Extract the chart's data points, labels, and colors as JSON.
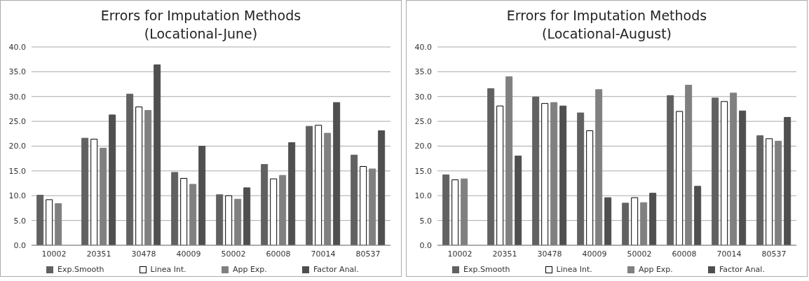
{
  "chart_data": [
    {
      "type": "bar",
      "title": "Errors for Imputation Methods",
      "subtitle": "(Locational-June)",
      "categories": [
        "10002",
        "20351",
        "30478",
        "40009",
        "50002",
        "60008",
        "70014",
        "80537"
      ],
      "series": [
        {
          "name": "Exp.Smooth",
          "color": "#616161",
          "values": [
            10.1,
            21.6,
            30.5,
            14.7,
            10.2,
            16.3,
            24.0,
            18.2
          ]
        },
        {
          "name": "Linea Int.",
          "color": "#ffffff",
          "values": [
            9.2,
            21.4,
            27.9,
            13.5,
            10.0,
            13.4,
            24.2,
            15.9
          ]
        },
        {
          "name": "App Exp.",
          "color": "#808080",
          "values": [
            8.4,
            19.6,
            27.2,
            12.3,
            9.3,
            14.1,
            22.6,
            15.4
          ]
        },
        {
          "name": "Factor Anal.",
          "color": "#4f4f4f",
          "values": [
            null,
            26.3,
            36.4,
            20.0,
            11.6,
            20.7,
            28.8,
            23.1
          ]
        }
      ],
      "ylim": [
        0,
        40
      ],
      "yticks": [
        {
          "value": 0,
          "label": "0.0"
        },
        {
          "value": 5,
          "label": "5.0"
        },
        {
          "value": 10,
          "label": "10.0"
        },
        {
          "value": 15,
          "label": "15.0"
        },
        {
          "value": 20,
          "label": "20.0"
        },
        {
          "value": 25,
          "label": "25.0"
        },
        {
          "value": 30,
          "label": "30.0"
        },
        {
          "value": 35,
          "label": "35.0"
        },
        {
          "value": 40,
          "label": "40.0"
        }
      ],
      "grid": "y",
      "legend": "bottom"
    },
    {
      "type": "bar",
      "title": "Errors for Imputation Methods",
      "subtitle": "(Locational-August)",
      "categories": [
        "10002",
        "20351",
        "30478",
        "40009",
        "50002",
        "60008",
        "70014",
        "80537"
      ],
      "series": [
        {
          "name": "Exp.Smooth",
          "color": "#616161",
          "values": [
            14.2,
            31.6,
            29.9,
            26.7,
            8.5,
            30.2,
            29.7,
            22.1
          ]
        },
        {
          "name": "Linea Int.",
          "color": "#ffffff",
          "values": [
            13.2,
            28.1,
            28.6,
            23.1,
            9.6,
            27.0,
            29.0,
            21.5
          ]
        },
        {
          "name": "App Exp.",
          "color": "#808080",
          "values": [
            13.4,
            34.0,
            28.8,
            31.4,
            8.6,
            32.3,
            30.7,
            21.0
          ]
        },
        {
          "name": "Factor Anal.",
          "color": "#4f4f4f",
          "values": [
            null,
            18.0,
            28.1,
            9.6,
            10.5,
            11.9,
            27.1,
            25.8
          ]
        }
      ],
      "ylim": [
        0,
        40
      ],
      "yticks": [
        {
          "value": 0,
          "label": "0.0"
        },
        {
          "value": 5,
          "label": "5.0"
        },
        {
          "value": 10,
          "label": "10.0"
        },
        {
          "value": 15,
          "label": "15.0"
        },
        {
          "value": 20,
          "label": "20.0"
        },
        {
          "value": 25,
          "label": "25.0"
        },
        {
          "value": 30,
          "label": "30.0"
        },
        {
          "value": 35,
          "label": "35.0"
        },
        {
          "value": 40,
          "label": "40.0"
        }
      ],
      "grid": "y",
      "legend": "bottom"
    }
  ]
}
